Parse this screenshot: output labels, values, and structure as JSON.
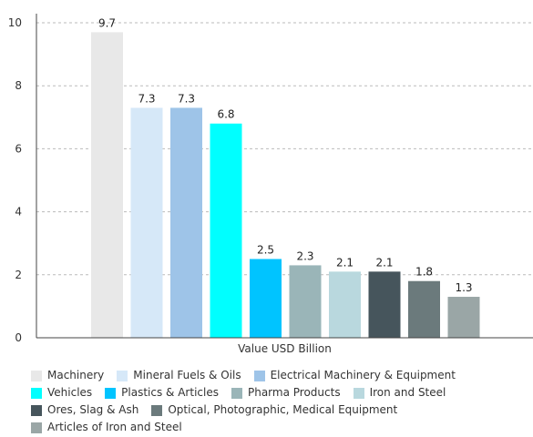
{
  "chart_data": {
    "type": "bar",
    "title": "",
    "xlabel": "Value USD Billion",
    "ylabel": "",
    "ylim": [
      0,
      10
    ],
    "yticks": [
      0,
      2,
      4,
      6,
      8,
      10
    ],
    "grid": true,
    "legend_position": "bottom",
    "categories": [
      "Machinery",
      "Mineral Fuels & Oils",
      "Electrical Machinery & Equipment",
      "Vehicles",
      "Plastics & Articles",
      "Pharma Products",
      "Iron and Steel",
      "Ores, Slag & Ash",
      "Optical, Photographic, Medical Equipment",
      "Articles of Iron and Steel"
    ],
    "values": [
      9.7,
      7.3,
      7.3,
      6.8,
      2.5,
      2.3,
      2.1,
      2.1,
      1.8,
      1.3
    ],
    "value_labels": [
      "9.7",
      "7.3",
      "7.3",
      "6.8",
      "2.5",
      "2.3",
      "2.1",
      "2.1",
      "1.8",
      "1.3"
    ],
    "colors": [
      "#e8e8e8",
      "#d6e8f8",
      "#9ec4e8",
      "#00ffff",
      "#00c4ff",
      "#9ab5b8",
      "#b9d8de",
      "#46555c",
      "#6b7a7c",
      "#9aa6a6"
    ]
  }
}
